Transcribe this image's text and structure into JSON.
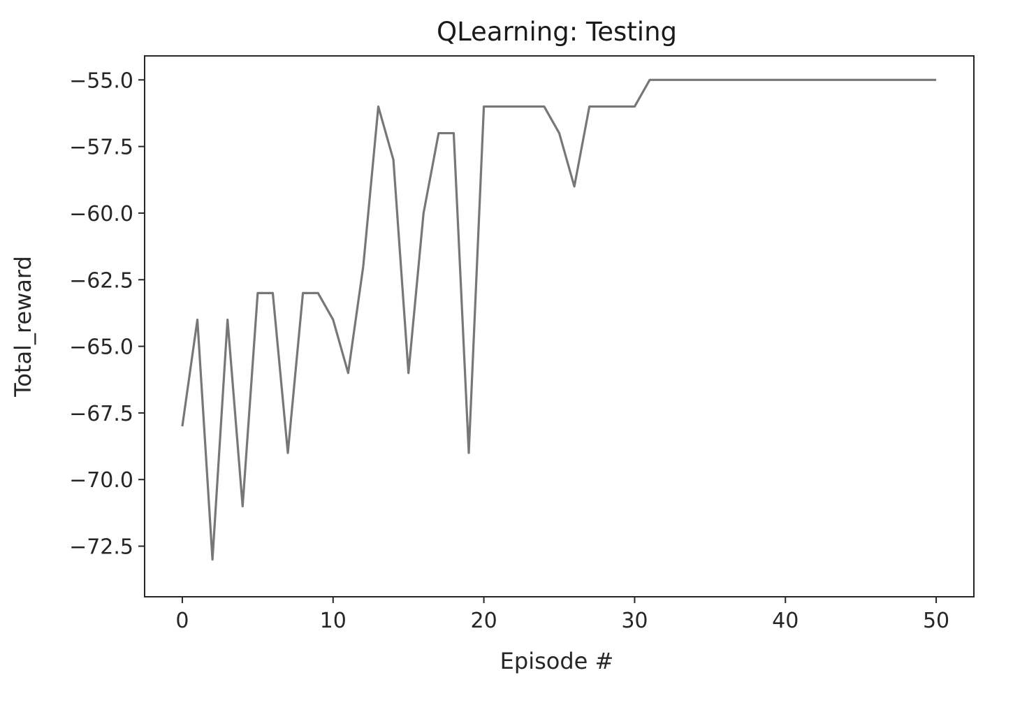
{
  "chart_data": {
    "type": "line",
    "title": "QLearning: Testing",
    "xlabel": "Episode #",
    "ylabel": "Total_reward",
    "xlim": [
      -2.5,
      52.5
    ],
    "ylim": [
      -74.4,
      -54.1
    ],
    "xticks": [
      0,
      10,
      20,
      30,
      40,
      50
    ],
    "yticks": [
      -55.0,
      -57.5,
      -60.0,
      -62.5,
      -65.0,
      -67.5,
      -70.0,
      -72.5
    ],
    "grid": false,
    "line_color": "#777777",
    "series": [
      {
        "x": [
          0,
          1,
          2,
          3,
          4,
          5,
          6,
          7,
          8,
          9,
          10,
          11,
          12,
          13,
          14,
          15,
          16,
          17,
          18,
          19,
          20,
          21,
          22,
          23,
          24,
          25,
          26,
          27,
          28,
          29,
          30,
          31,
          32,
          33,
          34,
          35,
          36,
          37,
          38,
          39,
          40,
          41,
          42,
          43,
          44,
          45,
          46,
          47,
          48,
          49,
          50
        ],
        "values": [
          -68,
          -64,
          -73,
          -64,
          -71,
          -63,
          -63,
          -69,
          -63,
          -63,
          -64,
          -66,
          -62,
          -56,
          -58,
          -66,
          -60,
          -57,
          -57,
          -69,
          -56,
          -56,
          -56,
          -56,
          -56,
          -57,
          -59,
          -56,
          -56,
          -56,
          -56,
          -55,
          -55,
          -55,
          -55,
          -55,
          -55,
          -55,
          -55,
          -55,
          -55,
          -55,
          -55,
          -55,
          -55,
          -55,
          -55,
          -55,
          -55,
          -55,
          -55
        ]
      }
    ]
  }
}
